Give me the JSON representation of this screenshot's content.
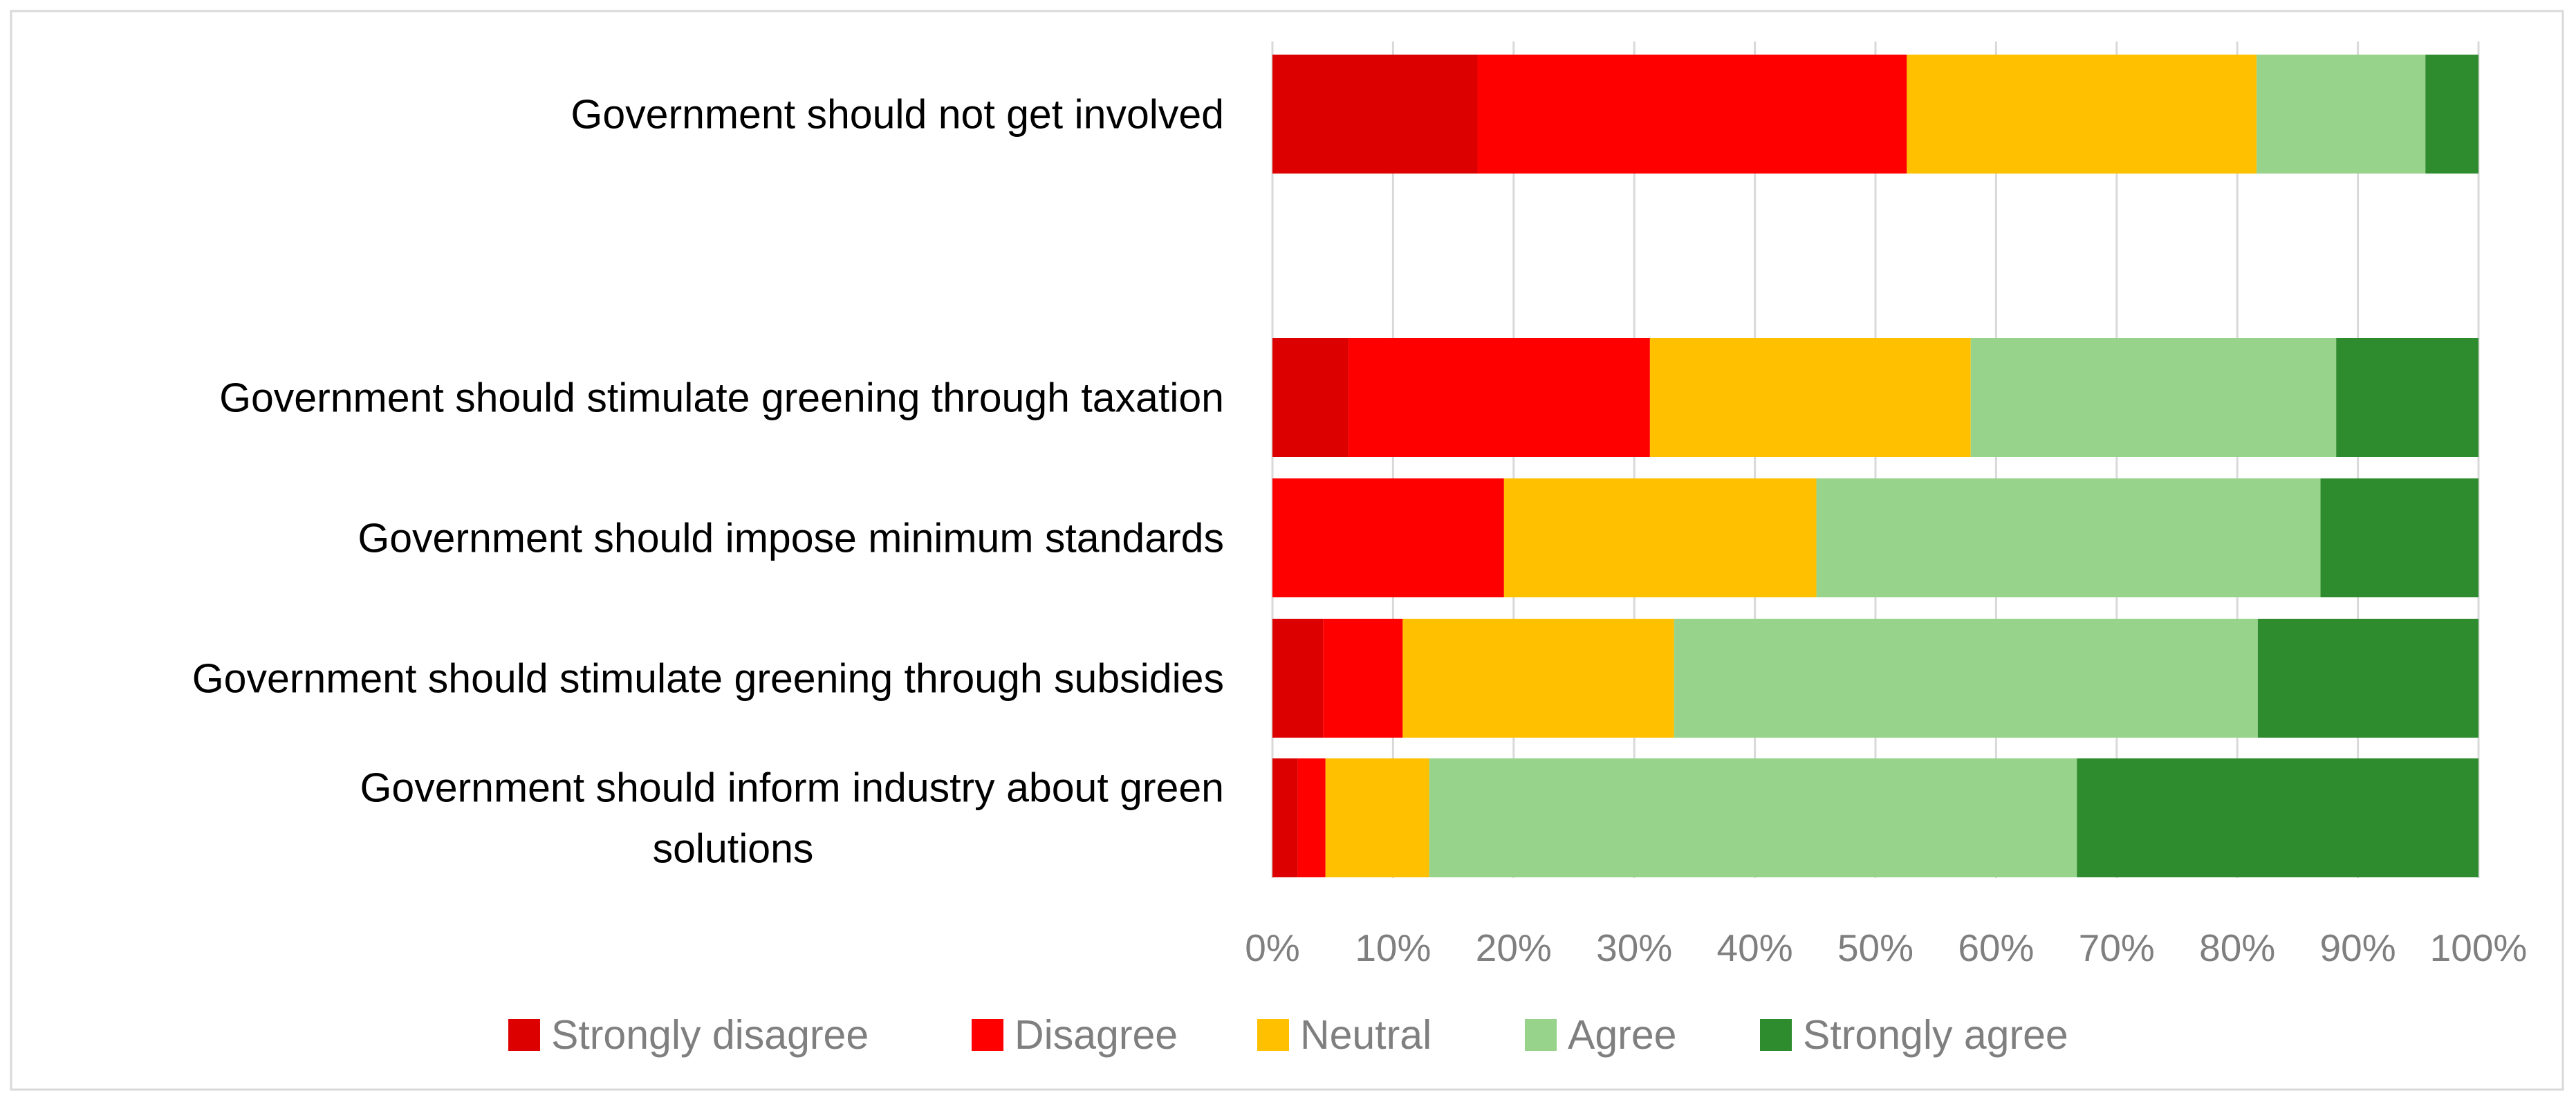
{
  "chart_data": {
    "type": "bar",
    "orientation": "horizontal",
    "stacked": "percent",
    "title": "",
    "xlabel": "",
    "ylabel": "",
    "xlim": [
      0,
      100
    ],
    "x_ticks": [
      "0%",
      "10%",
      "20%",
      "30%",
      "40%",
      "50%",
      "60%",
      "70%",
      "80%",
      "90%",
      "100%"
    ],
    "grid": true,
    "legend_position": "bottom",
    "categories": [
      "Government should not get involved",
      "",
      "Government should stimulate greening through taxation",
      "Government should impose minimum standards",
      "Government should stimulate greening through subsidies",
      "Government should inform industry about green solutions"
    ],
    "series": [
      {
        "name": "Strongly disagree",
        "color": "#DC0000",
        "values": [
          17,
          0,
          6.3,
          0,
          4.2,
          2.1
        ]
      },
      {
        "name": "Disagree",
        "color": "#FF0000",
        "values": [
          35.6,
          0,
          25,
          19.2,
          6.6,
          2.3
        ]
      },
      {
        "name": "Neutral",
        "color": "#FFC000",
        "values": [
          29,
          0,
          26.6,
          25.9,
          22.5,
          8.6
        ]
      },
      {
        "name": "Agree",
        "color": "#97D38A",
        "values": [
          14,
          0,
          30.3,
          41.8,
          48.4,
          53.7
        ]
      },
      {
        "name": "Strongly agree",
        "color": "#2E8B2E",
        "values": [
          4.4,
          0,
          11.8,
          13.1,
          18.3,
          33.3
        ]
      }
    ]
  }
}
